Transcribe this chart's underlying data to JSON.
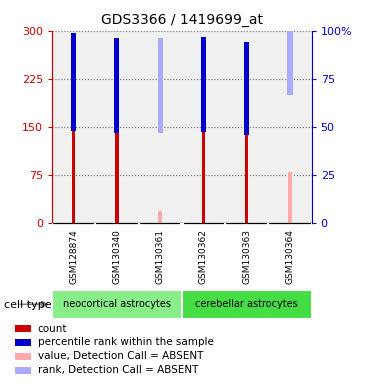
{
  "title": "GDS3366 / 1419699_at",
  "samples": [
    "GSM128874",
    "GSM130340",
    "GSM130361",
    "GSM130362",
    "GSM130363",
    "GSM130364"
  ],
  "count_values": [
    288,
    226,
    null,
    280,
    234,
    null
  ],
  "percentile_values": [
    148,
    144,
    null,
    145,
    141,
    null
  ],
  "absent_value_values": [
    null,
    null,
    18,
    null,
    null,
    79
  ],
  "absent_rank_values": [
    null,
    null,
    48,
    null,
    null,
    68
  ],
  "left_yticks": [
    0,
    75,
    150,
    225,
    300
  ],
  "right_yticks": [
    0,
    25,
    50,
    75,
    100
  ],
  "right_yticklabels": [
    "0",
    "25",
    "50",
    "75",
    "100%"
  ],
  "ylim_left": [
    0,
    300
  ],
  "ylim_right": [
    0,
    100
  ],
  "left_axis_color": "#cc0000",
  "right_axis_color": "#0000cc",
  "count_bar_color": "#cc0000",
  "percentile_bar_color": "#0000cc",
  "absent_value_color": "#ffaaaa",
  "absent_rank_color": "#aaaaff",
  "cell_type_neo_color": "#88ee88",
  "cell_type_cer_color": "#44dd44",
  "sample_bg_color": "#cccccc",
  "plot_bg_color": "#f0f0f0",
  "bar_width": 0.08,
  "percentile_bar_width": 0.12,
  "absent_rank_bar_width": 0.12
}
